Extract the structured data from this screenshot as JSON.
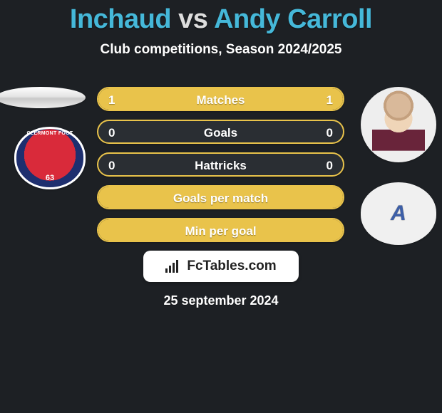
{
  "background_color": "#1d2024",
  "title": {
    "parts": [
      "Inchaud",
      " vs ",
      "Andy Carroll"
    ],
    "colors": [
      "#45b8d9",
      "#dddddd",
      "#45b8d9"
    ],
    "fontsize": 38
  },
  "subtitle": "Club competitions, Season 2024/2025",
  "bar_track_color": "#2a2e33",
  "bar_border": "2px solid #e9c34b",
  "stats": [
    {
      "label": "Matches",
      "left_val": "1",
      "right_val": "1",
      "left_pct": 50,
      "right_pct": 50,
      "left_color": "#e9c34b",
      "right_color": "#e9c34b"
    },
    {
      "label": "Goals",
      "left_val": "0",
      "right_val": "0",
      "left_pct": 0,
      "right_pct": 0,
      "left_color": "#e9c34b",
      "right_color": "#e9c34b"
    },
    {
      "label": "Hattricks",
      "left_val": "0",
      "right_val": "0",
      "left_pct": 0,
      "right_pct": 0,
      "left_color": "#e9c34b",
      "right_color": "#e9c34b"
    },
    {
      "label": "Goals per match",
      "left_val": "",
      "right_val": "",
      "left_pct": 100,
      "right_pct": 0,
      "left_color": "#e9c34b",
      "right_color": "#e9c34b"
    },
    {
      "label": "Min per goal",
      "left_val": "",
      "right_val": "",
      "left_pct": 100,
      "right_pct": 0,
      "left_color": "#e9c34b",
      "right_color": "#e9c34b"
    }
  ],
  "footer_brand": "FcTables.com",
  "date": "25 september 2024"
}
